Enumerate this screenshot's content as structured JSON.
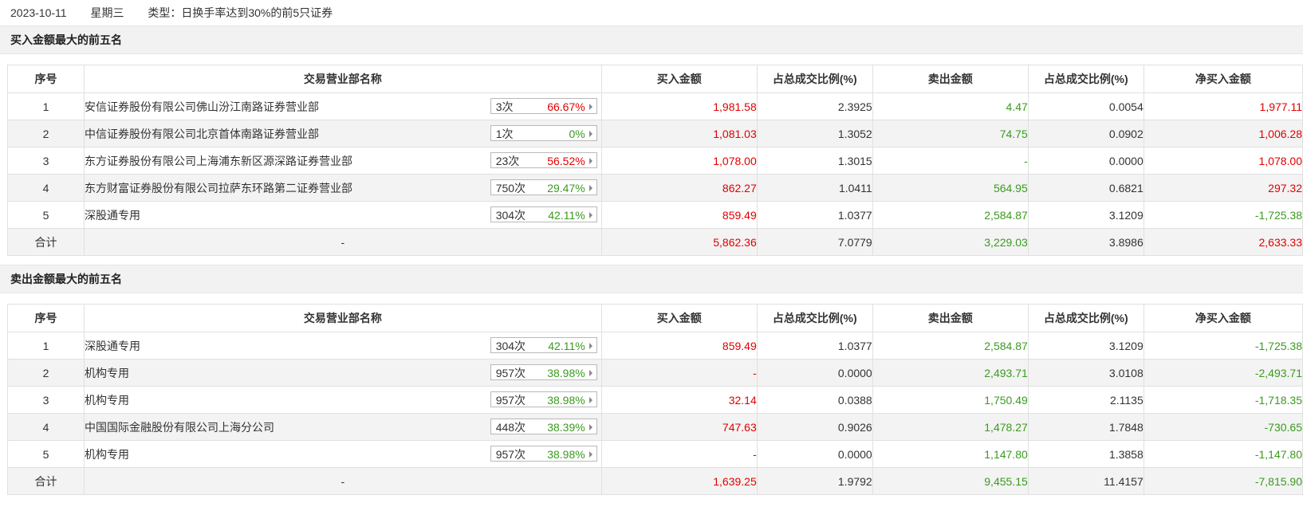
{
  "header": {
    "date": "2023-10-11",
    "weekday": "星期三",
    "type_text": "类型：日换手率达到30%的前5只证券"
  },
  "columns": [
    "序号",
    "交易营业部名称",
    "买入金额",
    "占总成交比例(%)",
    "卖出金额",
    "占总成交比例(%)",
    "净买入金额"
  ],
  "colors": {
    "up": "#e10000",
    "down": "#3a9b1f"
  },
  "buy_section": {
    "title": "买入金额最大的前五名",
    "rows": [
      {
        "idx": "1",
        "name": "安信证券股份有限公司佛山汾江南路证券营业部",
        "times": "3次",
        "rate": "66.67%",
        "rate_color": "red",
        "buy": "1,981.58",
        "buy_pct": "2.3925",
        "sell": "4.47",
        "sell_pct": "0.0054",
        "net": "1,977.11",
        "net_color": "red"
      },
      {
        "idx": "2",
        "name": "中信证券股份有限公司北京首体南路证券营业部",
        "times": "1次",
        "rate": "0%",
        "rate_color": "green",
        "buy": "1,081.03",
        "buy_pct": "1.3052",
        "sell": "74.75",
        "sell_pct": "0.0902",
        "net": "1,006.28",
        "net_color": "red"
      },
      {
        "idx": "3",
        "name": "东方证券股份有限公司上海浦东新区源深路证券营业部",
        "times": "23次",
        "rate": "56.52%",
        "rate_color": "red",
        "buy": "1,078.00",
        "buy_pct": "1.3015",
        "sell": "-",
        "sell_pct": "0.0000",
        "net": "1,078.00",
        "net_color": "red"
      },
      {
        "idx": "4",
        "name": "东方财富证券股份有限公司拉萨东环路第二证券营业部",
        "times": "750次",
        "rate": "29.47%",
        "rate_color": "green",
        "buy": "862.27",
        "buy_pct": "1.0411",
        "sell": "564.95",
        "sell_pct": "0.6821",
        "net": "297.32",
        "net_color": "red"
      },
      {
        "idx": "5",
        "name": "深股通专用",
        "times": "304次",
        "rate": "42.11%",
        "rate_color": "green",
        "buy": "859.49",
        "buy_pct": "1.0377",
        "sell": "2,584.87",
        "sell_pct": "3.1209",
        "net": "-1,725.38",
        "net_color": "green"
      }
    ],
    "total": {
      "label": "合计",
      "name": "-",
      "buy": "5,862.36",
      "buy_pct": "7.0779",
      "sell": "3,229.03",
      "sell_pct": "3.8986",
      "net": "2,633.33",
      "net_color": "red"
    }
  },
  "sell_section": {
    "title": "卖出金额最大的前五名",
    "rows": [
      {
        "idx": "1",
        "name": "深股通专用",
        "times": "304次",
        "rate": "42.11%",
        "rate_color": "green",
        "buy": "859.49",
        "buy_pct": "1.0377",
        "sell": "2,584.87",
        "sell_pct": "3.1209",
        "net": "-1,725.38",
        "net_color": "green"
      },
      {
        "idx": "2",
        "name": "机构专用",
        "times": "957次",
        "rate": "38.98%",
        "rate_color": "green",
        "buy": "-",
        "buy_pct": "0.0000",
        "sell": "2,493.71",
        "sell_pct": "3.0108",
        "net": "-2,493.71",
        "net_color": "green"
      },
      {
        "idx": "3",
        "name": "机构专用",
        "times": "957次",
        "rate": "38.98%",
        "rate_color": "green",
        "buy": "32.14",
        "buy_pct": "0.0388",
        "sell": "1,750.49",
        "sell_pct": "2.1135",
        "net": "-1,718.35",
        "net_color": "green"
      },
      {
        "idx": "4",
        "name": "中国国际金融股份有限公司上海分公司",
        "times": "448次",
        "rate": "38.39%",
        "rate_color": "green",
        "buy": "747.63",
        "buy_pct": "0.9026",
        "sell": "1,478.27",
        "sell_pct": "1.7848",
        "net": "-730.65",
        "net_color": "green"
      },
      {
        "idx": "5",
        "name": "机构专用",
        "times": "957次",
        "rate": "38.98%",
        "rate_color": "green",
        "buy": "-",
        "buy_pct": "0.0000",
        "sell": "1,147.80",
        "sell_pct": "1.3858",
        "net": "-1,147.80",
        "net_color": "green"
      }
    ],
    "total": {
      "label": "合计",
      "name": "-",
      "buy": "1,639.25",
      "buy_pct": "1.9792",
      "sell": "9,455.15",
      "sell_pct": "11.4157",
      "net": "-7,815.90",
      "net_color": "green"
    }
  }
}
